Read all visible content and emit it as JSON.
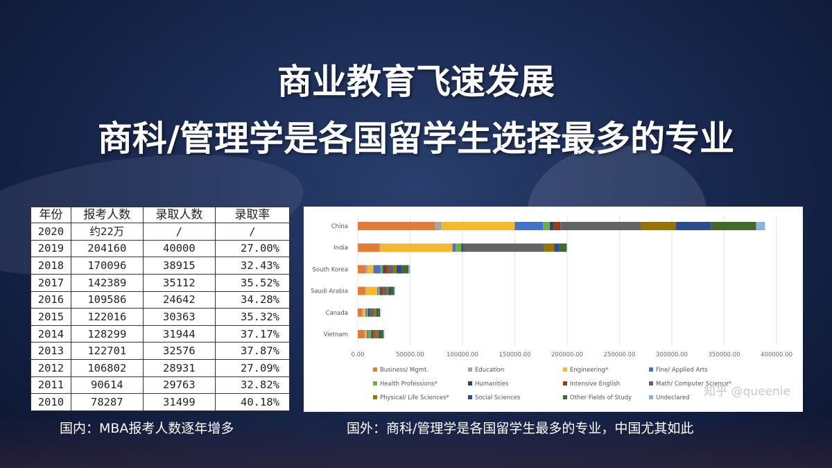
{
  "title_line1": "商业教育飞速发展",
  "title_line2": "商科/管理学是各国留学生选择最多的专业",
  "table": {
    "headers": [
      "年份",
      "报考人数",
      "录取人数",
      "录取率"
    ],
    "rows": [
      [
        "2020",
        "约22万",
        "/",
        "/"
      ],
      [
        "2019",
        "204160",
        "40000",
        "27.00%"
      ],
      [
        "2018",
        "170096",
        "38915",
        "32.43%"
      ],
      [
        "2017",
        "142389",
        "35112",
        "35.52%"
      ],
      [
        "2016",
        "109586",
        "24642",
        "34.28%"
      ],
      [
        "2015",
        "122016",
        "30363",
        "35.32%"
      ],
      [
        "2014",
        "128299",
        "31944",
        "37.17%"
      ],
      [
        "2013",
        "122701",
        "32576",
        "37.87%"
      ],
      [
        "2012",
        "106802",
        "28931",
        "27.09%"
      ],
      [
        "2011",
        "90614",
        "29763",
        "32.82%"
      ],
      [
        "2010",
        "78287",
        "31499",
        "40.18%"
      ]
    ]
  },
  "caption_left": "国内：MBA报考人数逐年增多",
  "caption_right": "国外：商科/管理学是各国留学生最多的专业，中国尤其如此",
  "watermark": "知乎 @queenie",
  "chart_data": {
    "type": "bar",
    "orientation": "horizontal",
    "stacked": true,
    "categories": [
      "China",
      "India",
      "South Korea",
      "Saudi Arabia",
      "Canada",
      "Vietnam"
    ],
    "xlim": [
      0,
      400000
    ],
    "xticks": [
      "0.00",
      "50000.00",
      "100000.00",
      "150000.00",
      "200000.00",
      "250000.00",
      "300000.00",
      "350000.00",
      "400000.00"
    ],
    "grid": true,
    "legend_position": "bottom",
    "series": [
      {
        "name": "Business/ Mgmt.",
        "color": "#e07b39",
        "values": [
          74000,
          20500,
          7500,
          7000,
          4000,
          6500
        ]
      },
      {
        "name": "Education",
        "color": "#a5a5a5",
        "values": [
          6000,
          1000,
          2000,
          700,
          1000,
          700
        ]
      },
      {
        "name": "Engineering*",
        "color": "#f5b82e",
        "values": [
          70000,
          69000,
          5500,
          11000,
          2500,
          1500
        ]
      },
      {
        "name": "Fine/ Applied Arts",
        "color": "#4472c4",
        "values": [
          27000,
          3000,
          6500,
          700,
          1200,
          1200
        ]
      },
      {
        "name": "Health Professions*",
        "color": "#70ad47",
        "values": [
          6500,
          5500,
          2500,
          1700,
          1300,
          3000
        ]
      },
      {
        "name": "Humanities",
        "color": "#264478",
        "values": [
          3500,
          1000,
          1500,
          700,
          1500,
          700
        ]
      },
      {
        "name": "Intensive English",
        "color": "#9e3b16",
        "values": [
          6500,
          1000,
          3500,
          2500,
          300,
          1500
        ]
      },
      {
        "name": "Math/ Computer Science*",
        "color": "#636363",
        "values": [
          77000,
          77000,
          5000,
          3500,
          3500,
          2000
        ]
      },
      {
        "name": "Physical/ Life Sciences*",
        "color": "#997300",
        "values": [
          33000,
          9500,
          3000,
          1500,
          2500,
          3000
        ]
      },
      {
        "name": "Social Sciences",
        "color": "#2d4c8a",
        "values": [
          34000,
          5000,
          5500,
          2500,
          1500,
          2000
        ]
      },
      {
        "name": "Other Fields of Study",
        "color": "#43682b",
        "values": [
          43000,
          7000,
          6000,
          3000,
          2000,
          2500
        ]
      },
      {
        "name": "Undeclared",
        "color": "#8ab4e0",
        "values": [
          8500,
          600,
          1500,
          700,
          500,
          800
        ]
      }
    ]
  }
}
